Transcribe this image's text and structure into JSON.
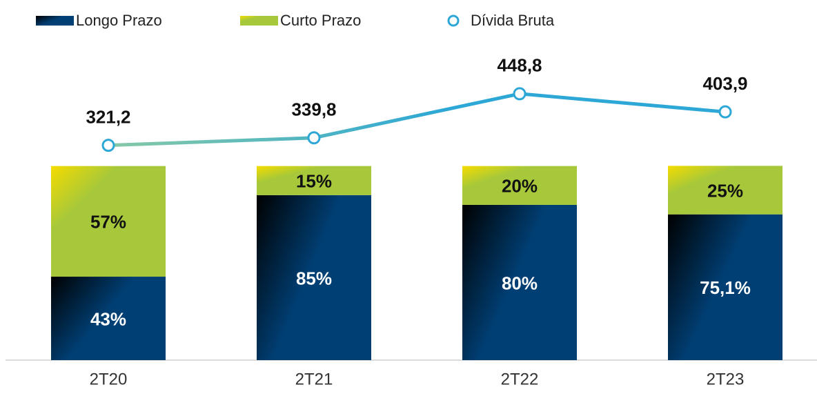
{
  "chart_data": {
    "type": "bar",
    "stacked": true,
    "categories": [
      "2T20",
      "2T21",
      "2T22",
      "2T23"
    ],
    "series": [
      {
        "name": "Longo Prazo",
        "color": "#003f74",
        "values": [
          43,
          85,
          80,
          75.1
        ],
        "value_labels": [
          "43%",
          "85%",
          "80%",
          "75,1%"
        ]
      },
      {
        "name": "Curto Prazo",
        "color": "#a6c83a",
        "values": [
          57,
          15,
          20,
          25
        ],
        "value_labels": [
          "57%",
          "15%",
          "20%",
          "25%"
        ]
      },
      {
        "name": "Dívida Bruta",
        "type": "line",
        "axis": "y2",
        "color": "#2ca7d6",
        "values": [
          321.2,
          339.8,
          448.8,
          403.9
        ],
        "value_labels": [
          "321,2",
          "339,8",
          "448,8",
          "403,9"
        ]
      }
    ],
    "ylim": [
      0,
      150
    ],
    "y2lim": [
      -210,
      510
    ]
  }
}
